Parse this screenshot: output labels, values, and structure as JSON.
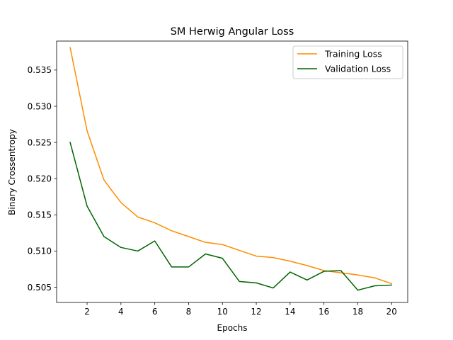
{
  "chart_data": {
    "type": "line",
    "title": "SM Herwig Angular Loss",
    "xlabel": "Epochs",
    "ylabel": "Binary Crossentropy",
    "xlim": [
      0.2,
      20.95
    ],
    "ylim": [
      0.5029,
      0.539
    ],
    "xticks": [
      2,
      4,
      6,
      8,
      10,
      12,
      14,
      16,
      18,
      20
    ],
    "yticks": [
      0.505,
      0.51,
      0.515,
      0.52,
      0.525,
      0.53,
      0.535
    ],
    "ytick_labels": [
      "0.505",
      "0.510",
      "0.515",
      "0.520",
      "0.525",
      "0.530",
      "0.535"
    ],
    "grid": false,
    "legend_position": "top-right",
    "x": [
      1,
      2,
      3,
      4,
      5,
      6,
      7,
      8,
      9,
      10,
      11,
      12,
      13,
      14,
      15,
      16,
      17,
      18,
      19,
      20
    ],
    "series": [
      {
        "name": "Training Loss",
        "color": "#ff8c00",
        "values": [
          0.5381,
          0.5266,
          0.5198,
          0.5167,
          0.5147,
          0.5139,
          0.5128,
          0.512,
          0.5112,
          0.5109,
          0.5101,
          0.5093,
          0.5091,
          0.5086,
          0.508,
          0.5073,
          0.507,
          0.5067,
          0.5063,
          0.5055
        ]
      },
      {
        "name": "Validation Loss",
        "color": "#006400",
        "values": [
          0.525,
          0.5162,
          0.512,
          0.5105,
          0.51,
          0.5114,
          0.5078,
          0.5078,
          0.5096,
          0.509,
          0.5058,
          0.5056,
          0.5049,
          0.5071,
          0.506,
          0.5072,
          0.5073,
          0.5046,
          0.5052,
          0.5053
        ]
      }
    ]
  }
}
